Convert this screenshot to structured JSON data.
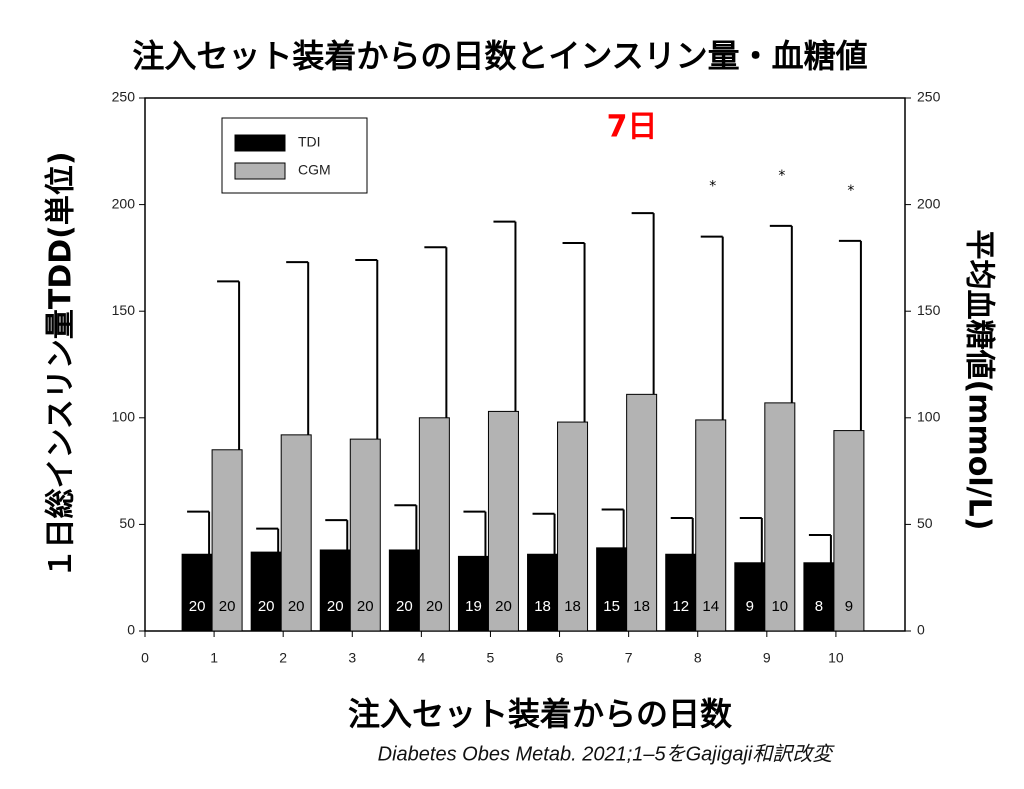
{
  "chart_data": {
    "type": "bar",
    "title": "注入セット装着からの日数とインスリン量・血糖値",
    "x_label": "注入セット装着からの日数",
    "y_label": "１日総インスリン量TDD(単位)",
    "y2_label": "平均血糖値(mmol/L)",
    "annotation": "7日",
    "source": "Diabetes Obes Metab. 2021;1–5をGajigaji和訳改変",
    "x": [
      1,
      2,
      3,
      4,
      5,
      6,
      7,
      8,
      9,
      10
    ],
    "xlim": [
      0,
      11
    ],
    "xticks": [
      0,
      1,
      2,
      3,
      4,
      5,
      6,
      7,
      8,
      9,
      10
    ],
    "ylim": [
      0,
      250
    ],
    "yticks": [
      0,
      50,
      100,
      150,
      200,
      250
    ],
    "y2lim": [
      0,
      250
    ],
    "y2ticks": [
      0,
      50,
      100,
      150,
      200,
      250
    ],
    "series": [
      {
        "name": "TDI",
        "color": "#000000",
        "values": [
          36,
          37,
          38,
          38,
          35,
          36,
          39,
          36,
          32,
          32
        ],
        "errors": [
          20,
          11,
          14,
          21,
          21,
          19,
          18,
          17,
          21,
          13
        ],
        "n": [
          20,
          20,
          20,
          20,
          19,
          18,
          15,
          12,
          9,
          8
        ]
      },
      {
        "name": "CGM",
        "color": "#b3b3b3",
        "axis": "y2",
        "values": [
          85,
          92,
          90,
          100,
          103,
          98,
          111,
          99,
          107,
          94
        ],
        "errors": [
          79,
          81,
          84,
          80,
          89,
          84,
          85,
          86,
          83,
          89
        ],
        "n": [
          20,
          20,
          20,
          20,
          20,
          18,
          18,
          14,
          10,
          9
        ],
        "markers": [
          null,
          null,
          null,
          null,
          null,
          null,
          null,
          "*",
          "*",
          "*"
        ]
      }
    ],
    "legend": "upper left"
  }
}
